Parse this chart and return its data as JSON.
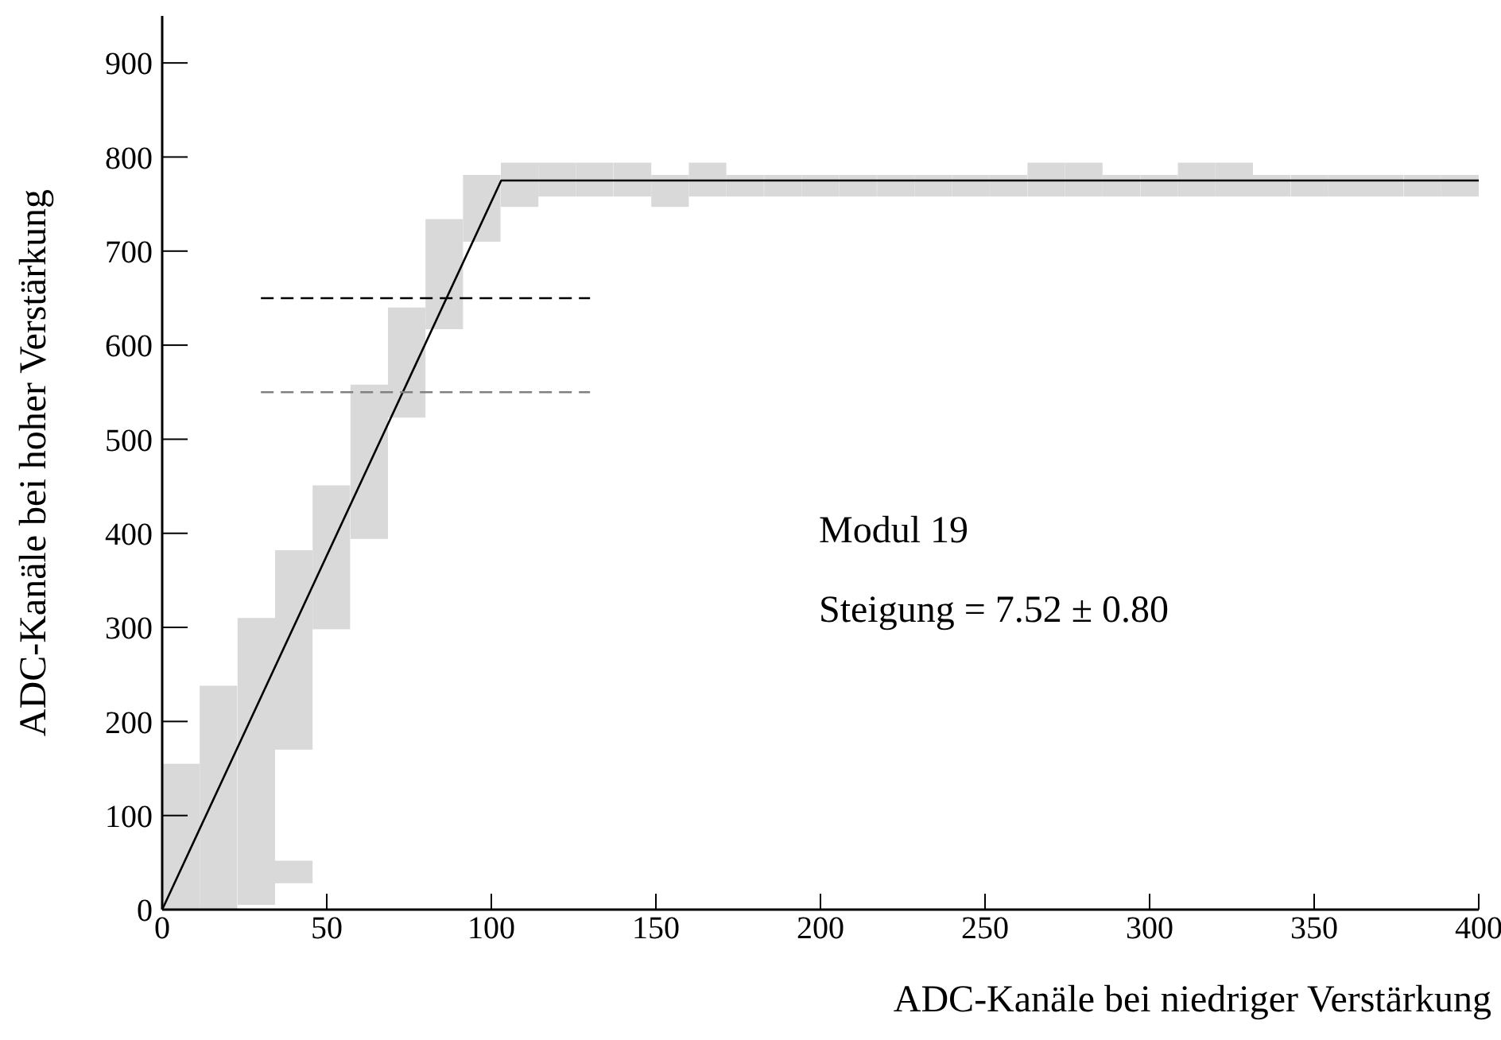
{
  "chart_data": {
    "type": "bar",
    "xlabel": "ADC-Kanäle bei niedriger Verstärkung",
    "ylabel": "ADC-Kanäle bei hoher Verstärkung",
    "annotations": [
      "Modul 19",
      "Steigung = 7.52 ± 0.80"
    ],
    "xlim": [
      0,
      400
    ],
    "xticks": [
      0,
      50,
      100,
      150,
      200,
      250,
      300,
      350,
      400
    ],
    "ylim": [
      0,
      950
    ],
    "yticks": [
      0,
      100,
      200,
      300,
      400,
      500,
      600,
      700,
      800,
      900
    ],
    "grid": false,
    "series": [
      {
        "color": "#d9d9d9",
        "x": [
          5.7,
          17.1,
          28.6,
          40,
          51.4,
          62.9,
          74.3,
          85.7,
          97.1,
          108.6,
          120,
          131.4,
          142.9,
          154.3,
          165.7,
          177.1,
          188.6,
          200,
          211.4,
          222.9,
          234.3,
          245.7,
          257.1,
          268.6,
          280,
          291.4,
          302.9,
          314.3,
          325.7,
          337.1,
          348.6,
          360,
          371.4,
          382.9,
          394.3
        ],
        "base": [
          0,
          0,
          5,
          170,
          298,
          394,
          523,
          617,
          710,
          747,
          758,
          758,
          758,
          747,
          758,
          758,
          758,
          758,
          758,
          758,
          758,
          758,
          758,
          758,
          758,
          758,
          758,
          758,
          758,
          758,
          758,
          758,
          758,
          758,
          758
        ],
        "values": [
          155,
          238,
          305,
          212,
          153,
          164,
          117,
          117,
          71,
          47,
          36,
          36,
          36,
          34,
          36,
          23,
          23,
          23,
          23,
          23,
          23,
          23,
          23,
          36,
          36,
          23,
          23,
          36,
          36,
          23,
          23,
          23,
          23,
          23,
          23
        ]
      },
      {
        "color": "#d9d9d9",
        "x": [
          40
        ],
        "base": [
          28
        ],
        "values": [
          24
        ]
      },
      {
        "type": "line",
        "color": "#000000",
        "x": [
          0,
          103,
          400
        ],
        "values": [
          0,
          775,
          775
        ]
      },
      {
        "type": "line",
        "color": "#000000",
        "line_style": "dashed",
        "x": [
          30,
          130
        ],
        "values": [
          650,
          650
        ]
      },
      {
        "type": "line",
        "color": "#808080",
        "line_style": "dashed",
        "x": [
          30,
          130
        ],
        "values": [
          550,
          550
        ]
      }
    ]
  }
}
